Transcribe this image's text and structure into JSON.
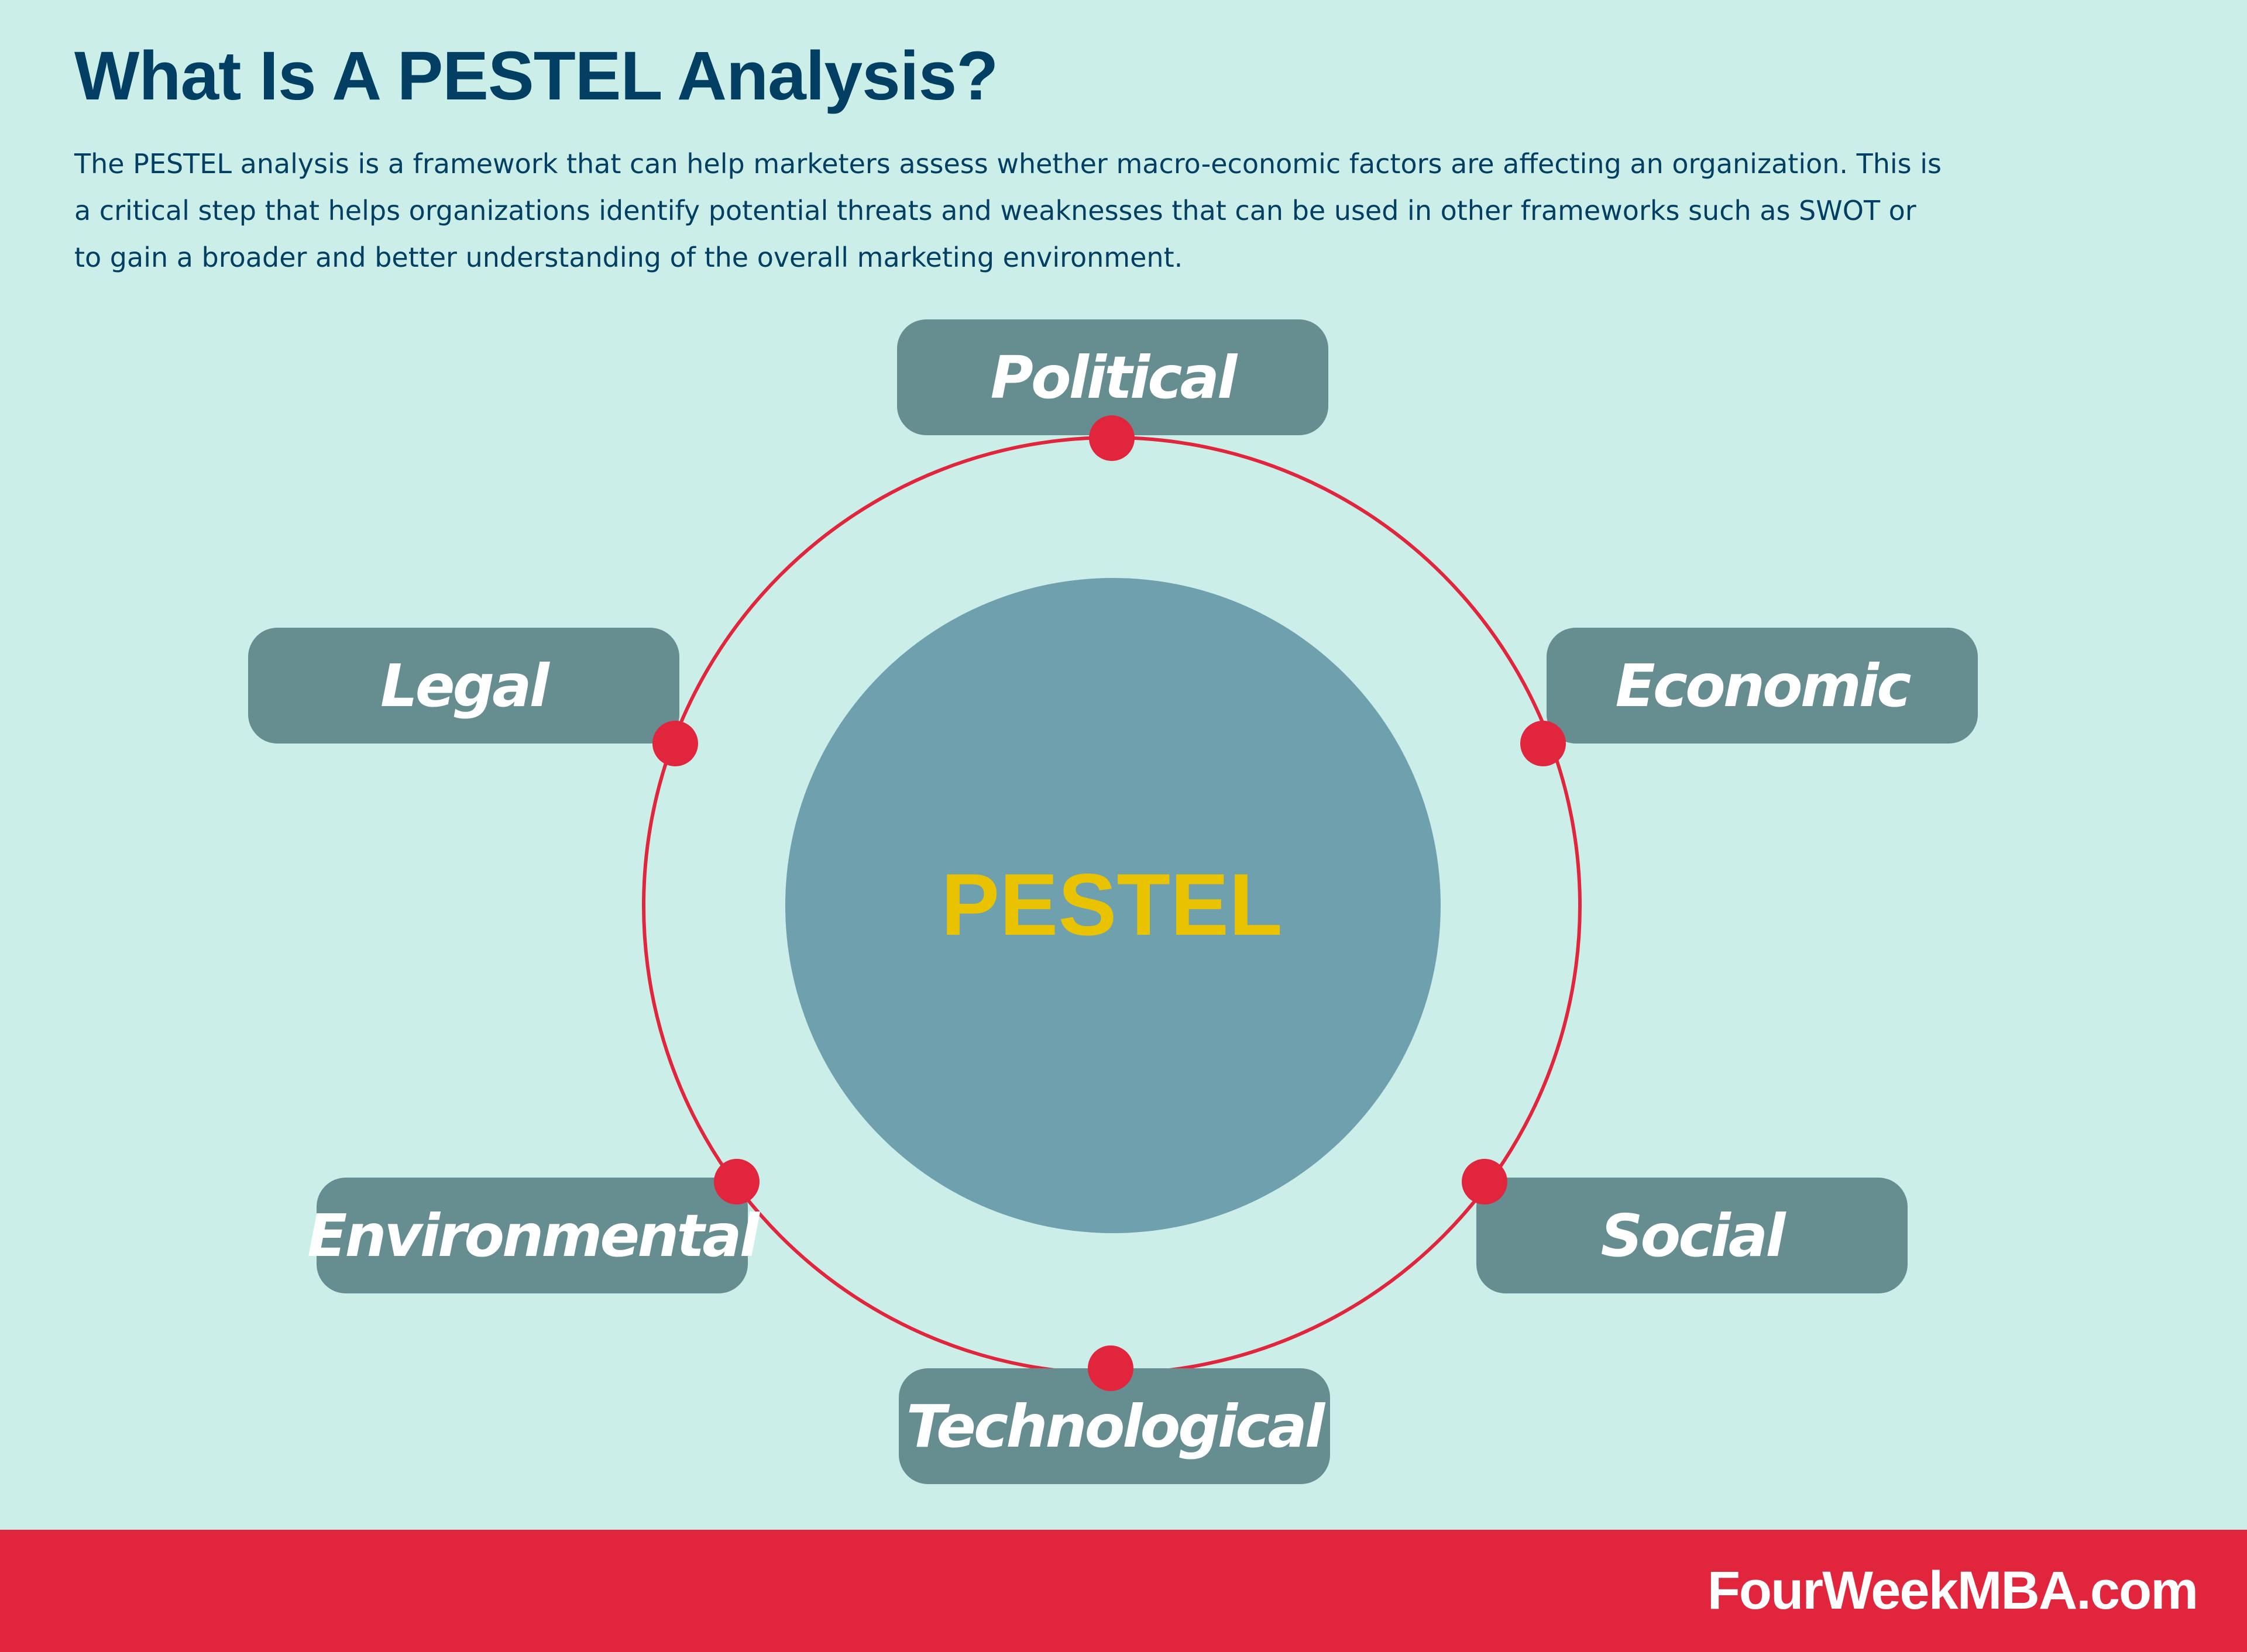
{
  "header": {
    "title": "What Is A PESTEL Analysis?",
    "description": "The PESTEL analysis is a framework that can help marketers assess whether macro-economic factors are affecting an organization. This is a critical step that helps organizations identify potential threats and weaknesses that can be used in other frameworks such as SWOT or to gain a broader and better understanding of the overall marketing environment."
  },
  "diagram": {
    "center": "PESTEL",
    "factors": [
      {
        "label": "Political"
      },
      {
        "label": "Economic"
      },
      {
        "label": "Social"
      },
      {
        "label": "Technological"
      },
      {
        "label": "Environmental"
      },
      {
        "label": "Legal"
      }
    ]
  },
  "footer": {
    "brand": "FourWeekMBA.com"
  },
  "colors": {
    "background": "#cbeee9",
    "title": "#023f63",
    "box": "#668d90",
    "ring": "#e0253c",
    "center_circle": "#6fa0ae",
    "center_text": "#e9c300",
    "footer": "#e0253c"
  }
}
